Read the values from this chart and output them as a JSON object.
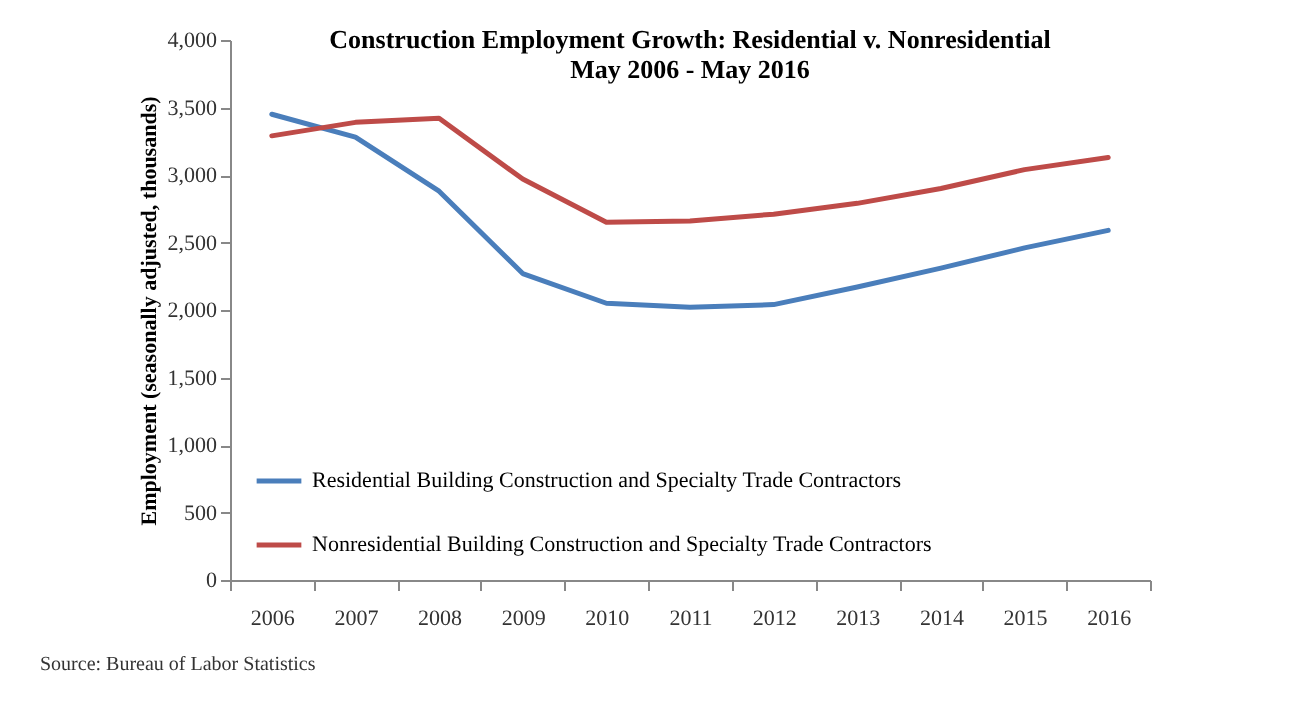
{
  "chart_data": {
    "type": "line",
    "title": [
      "Construction Employment Growth:  Residential v. Nonresidential",
      "May 2006 - May 2016"
    ],
    "ylabel": "Employment (seasonally adjusted, thousands)",
    "categories": [
      "2006",
      "2007",
      "2008",
      "2009",
      "2010",
      "2011",
      "2012",
      "2013",
      "2014",
      "2015",
      "2016"
    ],
    "series": [
      {
        "name": "Residential Building Construction and Specialty Trade Contractors",
        "color": "#4a7ebb",
        "values": [
          3450,
          3280,
          2880,
          2270,
          2050,
          2020,
          2040,
          2170,
          2310,
          2460,
          2590
        ]
      },
      {
        "name": "Nonresidential Building Construction and Specialty Trade Contractors",
        "color": "#be4b48",
        "values": [
          3290,
          3390,
          3420,
          2970,
          2650,
          2660,
          2710,
          2790,
          2900,
          3040,
          3130
        ]
      }
    ],
    "ylim": [
      0,
      4000
    ],
    "yticks": [
      0,
      500,
      {
        "value": 1000,
        "label": "1,000"
      },
      {
        "value": 1500,
        "label": "1,500"
      },
      {
        "value": 2000,
        "label": "2,000"
      },
      {
        "value": 2500,
        "label": "2,500"
      },
      {
        "value": 3000,
        "label": "3,000"
      },
      {
        "value": 3500,
        "label": "3,500"
      },
      {
        "value": 4000,
        "label": "4,000"
      }
    ],
    "grid": false,
    "legend": "bottom left",
    "marker": "none",
    "line_style": "solid",
    "annotations": [
      "Source:  Bureau of Labor Statistics"
    ]
  }
}
